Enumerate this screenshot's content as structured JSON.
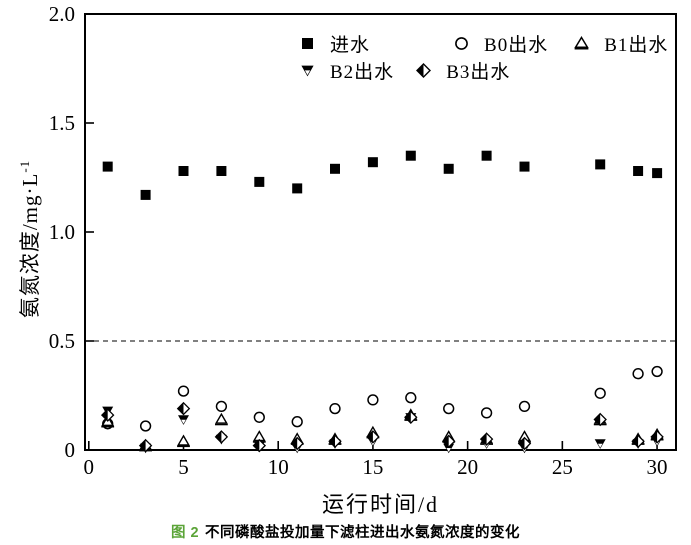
{
  "chart_data": {
    "type": "scatter",
    "title": "",
    "xlabel": "运行时间/d",
    "ylabel": "氨氮浓度/mg·L⁻¹",
    "ylabel_base": "氨氮浓度/mg·L",
    "ylabel_exponent": "-1",
    "xlim": [
      -0.2,
      31
    ],
    "ylim": [
      0,
      2.0
    ],
    "xticks": [
      0,
      5,
      10,
      15,
      20,
      25,
      30
    ],
    "xtick_labels": [
      "0",
      "5",
      "10",
      "15",
      "20",
      "25",
      "30"
    ],
    "yticks": [
      0,
      0.5,
      1.0,
      1.5,
      2.0
    ],
    "ytick_labels": [
      "0",
      "0.5",
      "1.0",
      "1.5",
      "2.0"
    ],
    "grid": false,
    "legend_position": "top-inside",
    "reference_line": {
      "y": 0.5,
      "style": "dashed"
    },
    "x": [
      1,
      3,
      5,
      7,
      9,
      11,
      13,
      15,
      17,
      19,
      21,
      23,
      27,
      29,
      30
    ],
    "series": [
      {
        "name": "进水",
        "marker": "square-filled",
        "values": [
          1.3,
          1.17,
          1.28,
          1.28,
          1.23,
          1.2,
          1.29,
          1.32,
          1.35,
          1.29,
          1.35,
          1.3,
          1.31,
          1.28,
          1.27
        ]
      },
      {
        "name": "B0出水",
        "marker": "circle-open",
        "values": [
          0.12,
          0.11,
          0.27,
          0.2,
          0.15,
          0.13,
          0.19,
          0.23,
          0.24,
          0.19,
          0.17,
          0.2,
          0.26,
          0.35,
          0.36
        ]
      },
      {
        "name": "B1出水",
        "marker": "triangle-up-open-base",
        "values": [
          0.13,
          0.02,
          0.04,
          0.14,
          0.06,
          0.05,
          0.05,
          0.08,
          0.16,
          0.06,
          0.05,
          0.06,
          0.14,
          0.05,
          0.07
        ]
      },
      {
        "name": "B2出水",
        "marker": "triangle-down-half-filled",
        "values": [
          0.18,
          0.01,
          0.14,
          0.05,
          0.02,
          0.01,
          0.03,
          0.04,
          0.15,
          0.01,
          0.03,
          0.01,
          0.03,
          0.03,
          0.04
        ]
      },
      {
        "name": "B3出水",
        "marker": "diamond-half-filled",
        "values": [
          0.16,
          0.02,
          0.19,
          0.06,
          0.02,
          0.03,
          0.04,
          0.06,
          0.15,
          0.04,
          0.05,
          0.03,
          0.14,
          0.04,
          0.06
        ]
      }
    ],
    "marker_color": "#000000",
    "background_color": "#ffffff"
  },
  "caption": {
    "figure_label": "图 2",
    "text": "不同磷酸盐投加量下滤柱进出水氨氮浓度的变化"
  }
}
